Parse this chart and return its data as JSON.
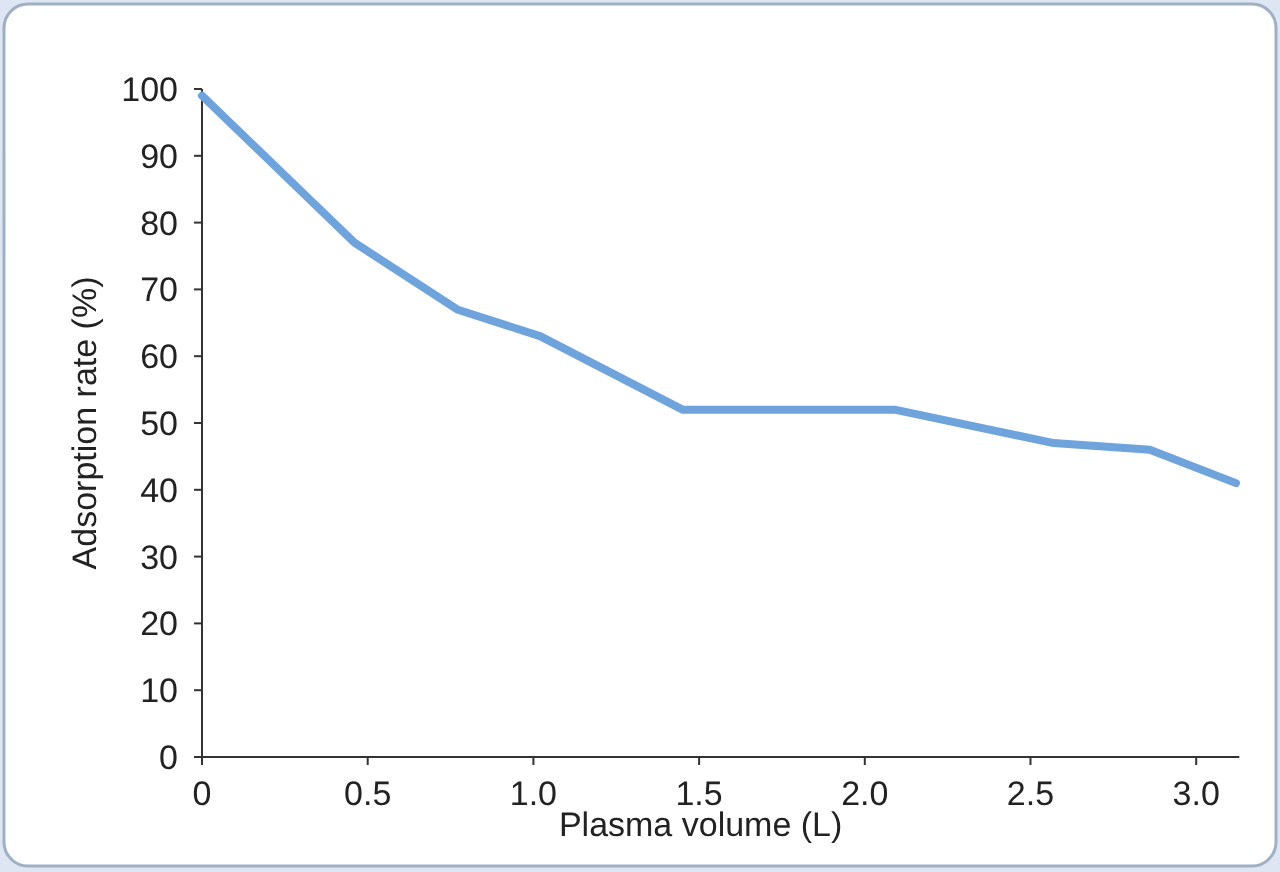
{
  "chart_data": {
    "type": "line",
    "xlabel": "Plasma volume (L)",
    "ylabel": "Adsorption rate (%)",
    "x": [
      0,
      0.46,
      0.77,
      1.02,
      1.45,
      2.09,
      2.57,
      2.86,
      3.12
    ],
    "series": [
      {
        "color": "#6fa3dc",
        "values": [
          99,
          77,
          67,
          63,
          52,
          52,
          47,
          46,
          41
        ]
      }
    ],
    "xlim": [
      0,
      3.13
    ],
    "ylim": [
      0,
      100
    ],
    "xticks": [
      {
        "value": 0,
        "label": "0"
      },
      0.5,
      {
        "value": 1,
        "label": "1.0"
      },
      1.5,
      {
        "value": 2,
        "label": "2.0"
      },
      2.5,
      {
        "value": 3,
        "label": "3.0"
      }
    ],
    "yticks": [
      0,
      10,
      20,
      30,
      40,
      50,
      60,
      70,
      80,
      90,
      100
    ],
    "grid": false,
    "marker": "none",
    "line_style": "solid"
  }
}
